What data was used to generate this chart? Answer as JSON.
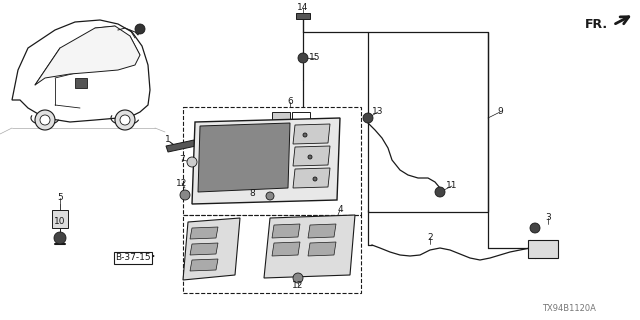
{
  "bg_color": "#ffffff",
  "line_color": "#1a1a1a",
  "gray_color": "#555555",
  "light_gray": "#aaaaaa",
  "diagram_code": "TX94B1120A",
  "fr_text": "FR.",
  "b3715_text": "B-37-15"
}
